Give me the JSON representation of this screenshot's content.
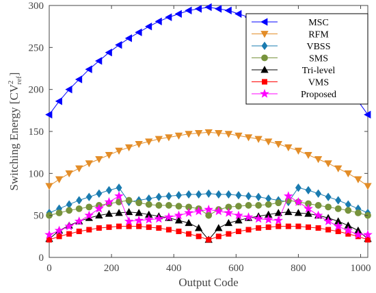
{
  "chart_data": {
    "type": "line",
    "title": "",
    "xlabel": "Output Code",
    "ylabel_main": "Switching Energy [CV",
    "ylabel_sup": "2",
    "ylabel_sub": "ref",
    "ylabel_close": "]",
    "xlim": [
      0,
      1023
    ],
    "ylim": [
      0,
      300
    ],
    "xticks": [
      "0",
      "200",
      "400",
      "600",
      "800",
      "1000"
    ],
    "yticks": [
      "0",
      "50",
      "100",
      "150",
      "200",
      "250",
      "300"
    ],
    "grid": false,
    "legend_position": "top-right",
    "series": [
      {
        "name": "MSC",
        "color": "#0000ff",
        "marker": "triangle-left",
        "x": [
          0,
          32,
          64,
          96,
          128,
          160,
          192,
          224,
          256,
          288,
          320,
          352,
          384,
          416,
          448,
          480,
          512,
          544,
          576,
          608,
          640,
          672,
          704,
          736,
          768,
          800,
          832,
          864,
          896,
          928,
          960,
          992,
          1023
        ],
        "y": [
          170,
          186,
          200,
          212,
          224,
          234,
          244,
          253,
          261,
          268,
          275,
          281,
          286,
          290,
          294,
          296,
          298,
          296,
          294,
          290,
          286,
          281,
          275,
          268,
          261,
          253,
          244,
          234,
          224,
          212,
          200,
          186,
          170
        ]
      },
      {
        "name": "RFM",
        "color": "#e38d28",
        "marker": "triangle-down",
        "x": [
          0,
          32,
          64,
          96,
          128,
          160,
          192,
          224,
          256,
          288,
          320,
          352,
          384,
          416,
          448,
          480,
          512,
          544,
          576,
          608,
          640,
          672,
          704,
          736,
          768,
          800,
          832,
          864,
          896,
          928,
          960,
          992,
          1023
        ],
        "y": [
          85,
          93,
          100,
          106,
          112,
          117,
          122,
          127,
          131,
          135,
          138,
          141,
          143,
          145,
          147,
          148,
          149,
          148,
          147,
          145,
          143,
          141,
          138,
          135,
          131,
          127,
          122,
          117,
          112,
          106,
          100,
          93,
          85
        ]
      },
      {
        "name": "VBSS",
        "color": "#1a7bb0",
        "marker": "diamond",
        "x": [
          0,
          32,
          64,
          96,
          128,
          160,
          192,
          224,
          256,
          288,
          320,
          352,
          384,
          416,
          448,
          480,
          512,
          544,
          576,
          608,
          640,
          672,
          704,
          736,
          768,
          800,
          832,
          864,
          896,
          928,
          960,
          992,
          1023
        ],
        "y": [
          53,
          58,
          63,
          68,
          72,
          76,
          80,
          83,
          66,
          68,
          70,
          72,
          73,
          74,
          75,
          75,
          76,
          75,
          75,
          74,
          73,
          72,
          70,
          68,
          66,
          83,
          80,
          76,
          72,
          68,
          63,
          58,
          53
        ]
      },
      {
        "name": "SMS",
        "color": "#77933c",
        "marker": "circle",
        "x": [
          0,
          32,
          64,
          96,
          128,
          160,
          192,
          224,
          256,
          288,
          320,
          352,
          384,
          416,
          448,
          480,
          512,
          544,
          576,
          608,
          640,
          672,
          704,
          736,
          768,
          800,
          832,
          864,
          896,
          928,
          960,
          992,
          1023
        ],
        "y": [
          50,
          53,
          56,
          58,
          60,
          62,
          64,
          66,
          68,
          65,
          63,
          62,
          62,
          61,
          60,
          58,
          50,
          57,
          60,
          61,
          62,
          62,
          63,
          65,
          68,
          66,
          64,
          62,
          60,
          58,
          56,
          53,
          50
        ]
      },
      {
        "name": "Tri-level",
        "color": "#000000",
        "marker": "triangle-up",
        "x": [
          0,
          32,
          64,
          96,
          128,
          160,
          192,
          224,
          256,
          288,
          320,
          352,
          384,
          416,
          448,
          480,
          512,
          544,
          576,
          608,
          640,
          672,
          704,
          736,
          768,
          800,
          832,
          864,
          896,
          928,
          960,
          992,
          1023
        ],
        "y": [
          22,
          32,
          38,
          43,
          47,
          50,
          52,
          53,
          54,
          53,
          51,
          49,
          47,
          44,
          41,
          35,
          21,
          35,
          41,
          44,
          47,
          49,
          51,
          53,
          54,
          53,
          52,
          50,
          47,
          43,
          38,
          32,
          22
        ]
      },
      {
        "name": "VMS",
        "color": "#ff0000",
        "marker": "square",
        "x": [
          0,
          32,
          64,
          96,
          128,
          160,
          192,
          224,
          256,
          288,
          320,
          352,
          384,
          416,
          448,
          480,
          512,
          544,
          576,
          608,
          640,
          672,
          704,
          736,
          768,
          800,
          832,
          864,
          896,
          928,
          960,
          992,
          1023
        ],
        "y": [
          21,
          25,
          28,
          31,
          33,
          35,
          36,
          37,
          37,
          37,
          36,
          35,
          33,
          31,
          28,
          25,
          21,
          25,
          28,
          31,
          33,
          35,
          36,
          37,
          37,
          37,
          36,
          35,
          33,
          31,
          28,
          25,
          21
        ]
      },
      {
        "name": "Proposed",
        "color": "#ff00ff",
        "marker": "star",
        "x": [
          0,
          32,
          64,
          96,
          128,
          160,
          192,
          224,
          256,
          288,
          320,
          352,
          384,
          416,
          448,
          480,
          512,
          544,
          576,
          608,
          640,
          672,
          704,
          736,
          768,
          800,
          832,
          864,
          896,
          928,
          960,
          992,
          1023
        ],
        "y": [
          27,
          32,
          37,
          43,
          50,
          58,
          66,
          73,
          43,
          44,
          45,
          46,
          48,
          50,
          53,
          55,
          57,
          55,
          53,
          50,
          48,
          46,
          45,
          44,
          73,
          66,
          58,
          50,
          43,
          37,
          32,
          27,
          27
        ]
      }
    ]
  }
}
